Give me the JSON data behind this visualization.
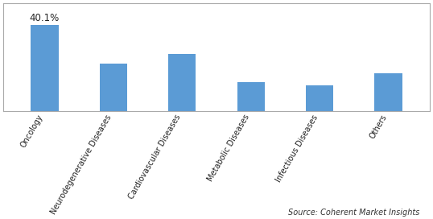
{
  "categories": [
    "Oncology",
    "Neurodegenerative Diseases",
    "Cardiovascular Diseases",
    "Metabolic Diseases",
    "Infectious Diseases",
    "Others"
  ],
  "values": [
    40.1,
    22.0,
    26.5,
    13.5,
    12.0,
    17.5
  ],
  "bar_color": "#5B9BD5",
  "annotation": "40.1%",
  "annotation_bar_index": 0,
  "source_text": "Source: Coherent Market Insights",
  "ylim": [
    0,
    50
  ],
  "bar_width": 0.4,
  "background_color": "#ffffff",
  "border_color": "#aaaaaa",
  "label_fontsize": 7.0,
  "annotation_fontsize": 8.5,
  "source_fontsize": 7.0
}
